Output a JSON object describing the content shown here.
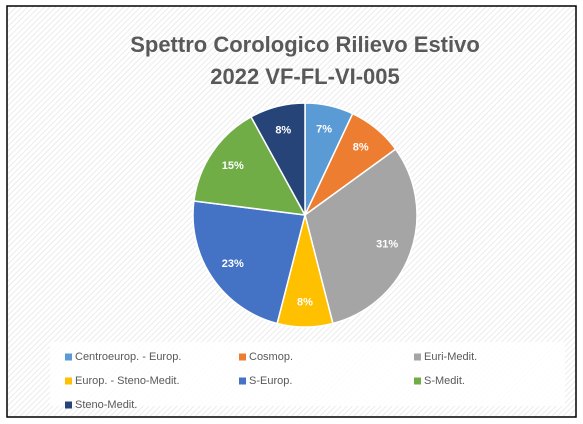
{
  "chart_data": {
    "type": "pie",
    "title": [
      "Spettro Corologico Rilievo Estivo",
      "2022 VF-FL-VI-005"
    ],
    "categories": [
      "Centroeurop. - Europ.",
      "Cosmop.",
      "Euri-Medit.",
      "Europ. - Steno-Medit.",
      "S-Europ.",
      "S-Medit.",
      "Steno-Medit."
    ],
    "values": [
      7,
      8,
      31,
      8,
      23,
      15,
      8
    ],
    "value_labels": [
      "7%",
      "8%",
      "31%",
      "8%",
      "23%",
      "15%",
      "8%"
    ],
    "colors": [
      "#5b9bd5",
      "#ed7d31",
      "#a5a5a5",
      "#ffc000",
      "#4472c4",
      "#70ad47",
      "#264478"
    ],
    "legend": "bottom"
  }
}
